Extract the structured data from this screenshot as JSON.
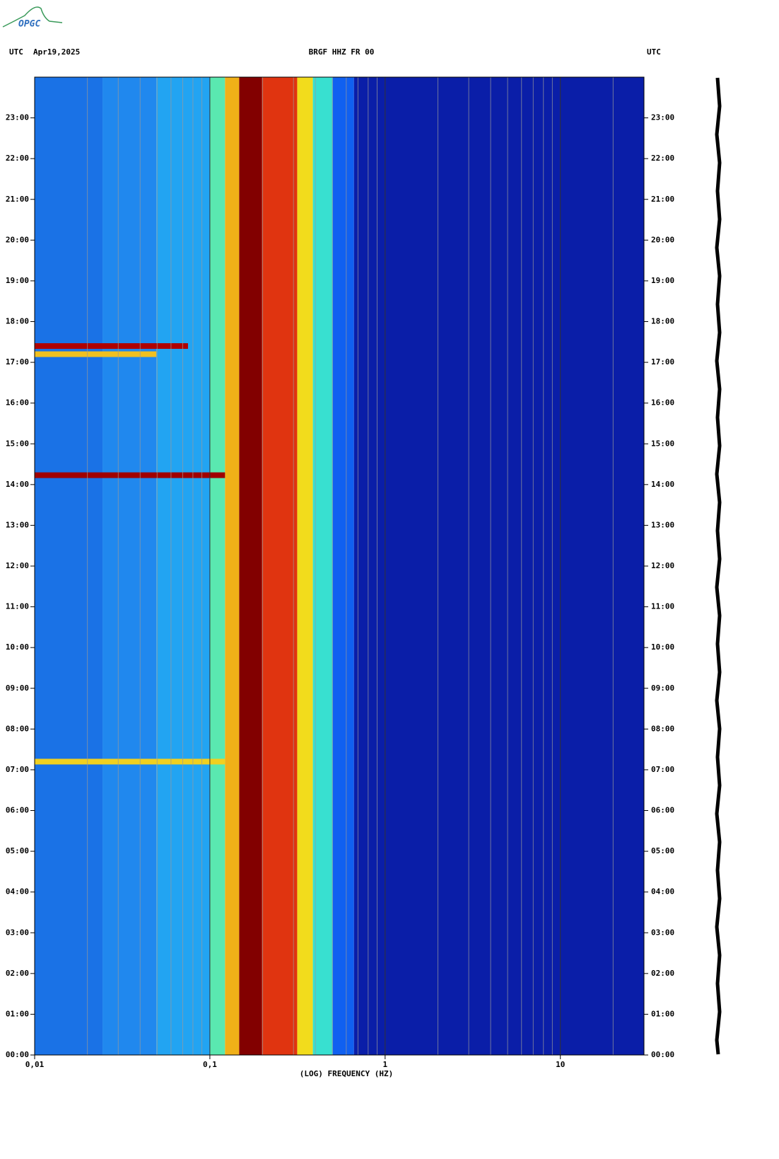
{
  "logo": "OPGC",
  "chart_data": {
    "type": "spectrogram",
    "title": "BRGF HHZ FR 00",
    "date": "Apr19,2025",
    "left_label": "UTC",
    "right_label": "UTC",
    "x_label": "(LOG) FREQUENCY (HZ)",
    "x_log": true,
    "grid": true,
    "xlim": [
      0.01,
      30
    ],
    "xticks": [
      {
        "value": 0.01,
        "label": "0,01"
      },
      {
        "value": 0.1,
        "label": "0,1"
      },
      1,
      10
    ],
    "xminorticks": [
      0.02,
      0.03,
      0.04,
      0.05,
      0.06,
      0.07,
      0.08,
      0.09,
      0.2,
      0.3,
      0.4,
      0.5,
      0.6,
      0.7,
      0.8,
      0.9,
      2,
      3,
      4,
      5,
      6,
      7,
      8,
      9,
      20
    ],
    "ylim": [
      0,
      24
    ],
    "yticks": [
      {
        "value": 0,
        "label": "00:00"
      },
      {
        "value": 1,
        "label": "01:00"
      },
      {
        "value": 2,
        "label": "02:00"
      },
      {
        "value": 3,
        "label": "03:00"
      },
      {
        "value": 4,
        "label": "04:00"
      },
      {
        "value": 5,
        "label": "05:00"
      },
      {
        "value": 6,
        "label": "06:00"
      },
      {
        "value": 7,
        "label": "07:00"
      },
      {
        "value": 8,
        "label": "08:00"
      },
      {
        "value": 9,
        "label": "09:00"
      },
      {
        "value": 10,
        "label": "10:00"
      },
      {
        "value": 11,
        "label": "11:00"
      },
      {
        "value": 12,
        "label": "12:00"
      },
      {
        "value": 13,
        "label": "13:00"
      },
      {
        "value": 14,
        "label": "14:00"
      },
      {
        "value": 15,
        "label": "15:00"
      },
      {
        "value": 16,
        "label": "16:00"
      },
      {
        "value": 17,
        "label": "17:00"
      },
      {
        "value": 18,
        "label": "18:00"
      },
      {
        "value": 19,
        "label": "19:00"
      },
      {
        "value": 20,
        "label": "20:00"
      },
      {
        "value": 21,
        "label": "21:00"
      },
      {
        "value": 22,
        "label": "22:00"
      },
      {
        "value": 23,
        "label": "23:00"
      }
    ],
    "bands": [
      {
        "from": 0.01,
        "to": 0.0244,
        "color": "#1a72e6"
      },
      {
        "from": 0.0244,
        "to": 0.0495,
        "color": "#2088ee"
      },
      {
        "from": 0.0495,
        "to": 0.1,
        "color": "#22a4f2"
      },
      {
        "from": 0.1,
        "to": 0.122,
        "color": "#5ae8b0"
      },
      {
        "from": 0.122,
        "to": 0.147,
        "color": "#f0b018"
      },
      {
        "from": 0.147,
        "to": 0.198,
        "color": "#820000"
      },
      {
        "from": 0.198,
        "to": 0.315,
        "color": "#e03410"
      },
      {
        "from": 0.315,
        "to": 0.387,
        "color": "#f2dc1c"
      },
      {
        "from": 0.387,
        "to": 0.502,
        "color": "#38e0d0"
      },
      {
        "from": 0.502,
        "to": 0.664,
        "color": "#1060f0"
      },
      {
        "from": 0.664,
        "to": 30,
        "color": "#0a1ea8"
      }
    ],
    "events": [
      {
        "time": 7.2,
        "fmax": 0.122,
        "color": "#f0d020"
      },
      {
        "time": 14.23,
        "fmax": 0.122,
        "color": "#a00000"
      },
      {
        "time": 17.2,
        "fmax": 0.0495,
        "color": "#f0c020"
      },
      {
        "time": 17.4,
        "fmax": 0.075,
        "color": "#b00000"
      }
    ]
  }
}
